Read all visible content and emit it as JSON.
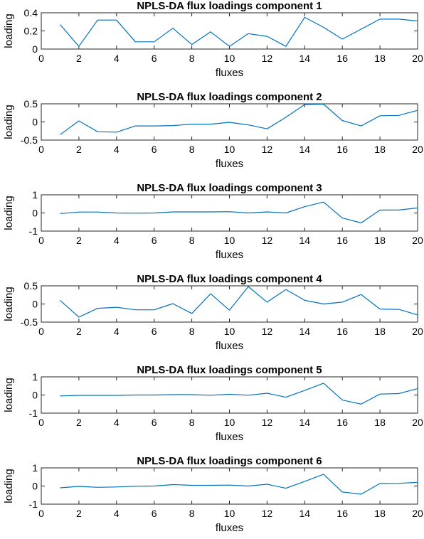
{
  "chart_data": [
    {
      "type": "line",
      "title": "NPLS-DA flux loadings component 1",
      "xlabel": "fluxes",
      "ylabel": "loading",
      "xlim": [
        0,
        20
      ],
      "ylim": [
        0,
        0.4
      ],
      "xticks": [
        0,
        2,
        4,
        6,
        8,
        10,
        12,
        14,
        16,
        18,
        20
      ],
      "xtick_labels": [
        "0",
        "2",
        "4",
        "6",
        "8",
        "10",
        "12",
        "14",
        "16",
        "18",
        "20"
      ],
      "yticks": [
        0,
        0.2,
        0.4
      ],
      "ytick_labels": [
        "0",
        "0.2",
        "0.4"
      ],
      "grid": false,
      "color": "#0072bd",
      "series": [
        {
          "x": [
            1,
            2,
            3,
            4,
            5,
            6,
            7,
            8,
            9,
            10,
            11,
            12,
            13,
            14,
            15,
            16,
            17,
            18,
            19,
            20
          ],
          "values": [
            0.27,
            0.03,
            0.32,
            0.32,
            0.08,
            0.08,
            0.23,
            0.05,
            0.19,
            0.03,
            0.17,
            0.14,
            0.03,
            0.35,
            0.24,
            0.11,
            0.22,
            0.33,
            0.33,
            0.31
          ]
        }
      ]
    },
    {
      "type": "line",
      "title": "NPLS-DA flux loadings component 2",
      "xlabel": "fluxes",
      "ylabel": "loading",
      "xlim": [
        0,
        20
      ],
      "ylim": [
        -0.5,
        0.5
      ],
      "xticks": [
        0,
        2,
        4,
        6,
        8,
        10,
        12,
        14,
        16,
        18,
        20
      ],
      "xtick_labels": [
        "0",
        "2",
        "4",
        "6",
        "8",
        "10",
        "12",
        "14",
        "16",
        "18",
        "20"
      ],
      "yticks": [
        -0.5,
        0,
        0.5
      ],
      "ytick_labels": [
        "-0.5",
        "0",
        "0.5"
      ],
      "grid": false,
      "color": "#0072bd",
      "series": [
        {
          "x": [
            1,
            2,
            3,
            4,
            5,
            6,
            7,
            8,
            9,
            10,
            11,
            12,
            13,
            14,
            15,
            16,
            17,
            18,
            19,
            20
          ],
          "values": [
            -0.35,
            0.03,
            -0.27,
            -0.28,
            -0.11,
            -0.11,
            -0.1,
            -0.06,
            -0.06,
            -0.01,
            -0.08,
            -0.19,
            0.13,
            0.48,
            0.49,
            0.04,
            -0.11,
            0.17,
            0.18,
            0.32
          ]
        }
      ]
    },
    {
      "type": "line",
      "title": "NPLS-DA flux loadings component 3",
      "xlabel": "fluxes",
      "ylabel": "loading",
      "xlim": [
        0,
        20
      ],
      "ylim": [
        -1,
        1
      ],
      "xticks": [
        0,
        2,
        4,
        6,
        8,
        10,
        12,
        14,
        16,
        18,
        20
      ],
      "xtick_labels": [
        "0",
        "2",
        "4",
        "6",
        "8",
        "10",
        "12",
        "14",
        "16",
        "18",
        "20"
      ],
      "yticks": [
        -1,
        0,
        1
      ],
      "ytick_labels": [
        "-1",
        "0",
        "1"
      ],
      "grid": false,
      "color": "#0072bd",
      "series": [
        {
          "x": [
            1,
            2,
            3,
            4,
            5,
            6,
            7,
            8,
            9,
            10,
            11,
            12,
            13,
            14,
            15,
            16,
            17,
            18,
            19,
            20
          ],
          "values": [
            -0.03,
            0.05,
            0.05,
            0.0,
            -0.01,
            0.0,
            0.06,
            0.06,
            0.06,
            0.07,
            0.0,
            0.06,
            0.0,
            0.35,
            0.6,
            -0.28,
            -0.55,
            0.16,
            0.16,
            0.28
          ]
        }
      ]
    },
    {
      "type": "line",
      "title": "NPLS-DA flux loadings component 4",
      "xlabel": "fluxes",
      "ylabel": "loading",
      "xlim": [
        0,
        20
      ],
      "ylim": [
        -0.5,
        0.5
      ],
      "xticks": [
        0,
        2,
        4,
        6,
        8,
        10,
        12,
        14,
        16,
        18,
        20
      ],
      "xtick_labels": [
        "0",
        "2",
        "4",
        "6",
        "8",
        "10",
        "12",
        "14",
        "16",
        "18",
        "20"
      ],
      "yticks": [
        -0.5,
        0,
        0.5
      ],
      "ytick_labels": [
        "-0.5",
        "0",
        "0.5"
      ],
      "grid": false,
      "color": "#0072bd",
      "series": [
        {
          "x": [
            1,
            2,
            3,
            4,
            5,
            6,
            7,
            8,
            9,
            10,
            11,
            12,
            13,
            14,
            15,
            16,
            17,
            18,
            19,
            20
          ],
          "values": [
            0.1,
            -0.36,
            -0.12,
            -0.09,
            -0.16,
            -0.16,
            0.01,
            -0.26,
            0.28,
            -0.17,
            0.48,
            0.05,
            0.4,
            0.1,
            0.0,
            0.05,
            0.26,
            -0.14,
            -0.15,
            -0.3
          ]
        }
      ]
    },
    {
      "type": "line",
      "title": "NPLS-DA flux loadings component 5",
      "xlabel": "fluxes",
      "ylabel": "loading",
      "xlim": [
        0,
        20
      ],
      "ylim": [
        -1,
        1
      ],
      "xticks": [
        0,
        2,
        4,
        6,
        8,
        10,
        12,
        14,
        16,
        18,
        20
      ],
      "xtick_labels": [
        "0",
        "2",
        "4",
        "6",
        "8",
        "10",
        "12",
        "14",
        "16",
        "18",
        "20"
      ],
      "yticks": [
        -1,
        0,
        1
      ],
      "ytick_labels": [
        "-1",
        "0",
        "1"
      ],
      "grid": false,
      "color": "#0072bd",
      "series": [
        {
          "x": [
            1,
            2,
            3,
            4,
            5,
            6,
            7,
            8,
            9,
            10,
            11,
            12,
            13,
            14,
            15,
            16,
            17,
            18,
            19,
            20
          ],
          "values": [
            -0.05,
            -0.02,
            -0.02,
            -0.02,
            0.0,
            0.0,
            0.02,
            0.02,
            -0.01,
            0.04,
            -0.01,
            0.1,
            -0.12,
            0.25,
            0.65,
            -0.28,
            -0.5,
            0.05,
            0.08,
            0.35
          ]
        }
      ]
    },
    {
      "type": "line",
      "title": "NPLS-DA flux loadings component 6",
      "xlabel": "fluxes",
      "ylabel": "loading",
      "xlim": [
        0,
        20
      ],
      "ylim": [
        -1,
        1
      ],
      "xticks": [
        0,
        2,
        4,
        6,
        8,
        10,
        12,
        14,
        16,
        18,
        20
      ],
      "xtick_labels": [
        "0",
        "2",
        "4",
        "6",
        "8",
        "10",
        "12",
        "14",
        "16",
        "18",
        "20"
      ],
      "yticks": [
        -1,
        0,
        1
      ],
      "ytick_labels": [
        "-1",
        "0",
        "1"
      ],
      "grid": false,
      "color": "#0072bd",
      "series": [
        {
          "x": [
            1,
            2,
            3,
            4,
            5,
            6,
            7,
            8,
            9,
            10,
            11,
            12,
            13,
            14,
            15,
            16,
            17,
            18,
            19,
            20
          ],
          "values": [
            -0.1,
            -0.02,
            -0.07,
            -0.05,
            -0.01,
            0.0,
            0.08,
            0.04,
            0.04,
            0.05,
            0.0,
            0.1,
            -0.12,
            0.25,
            0.65,
            -0.33,
            -0.45,
            0.14,
            0.15,
            0.2
          ]
        }
      ]
    }
  ]
}
